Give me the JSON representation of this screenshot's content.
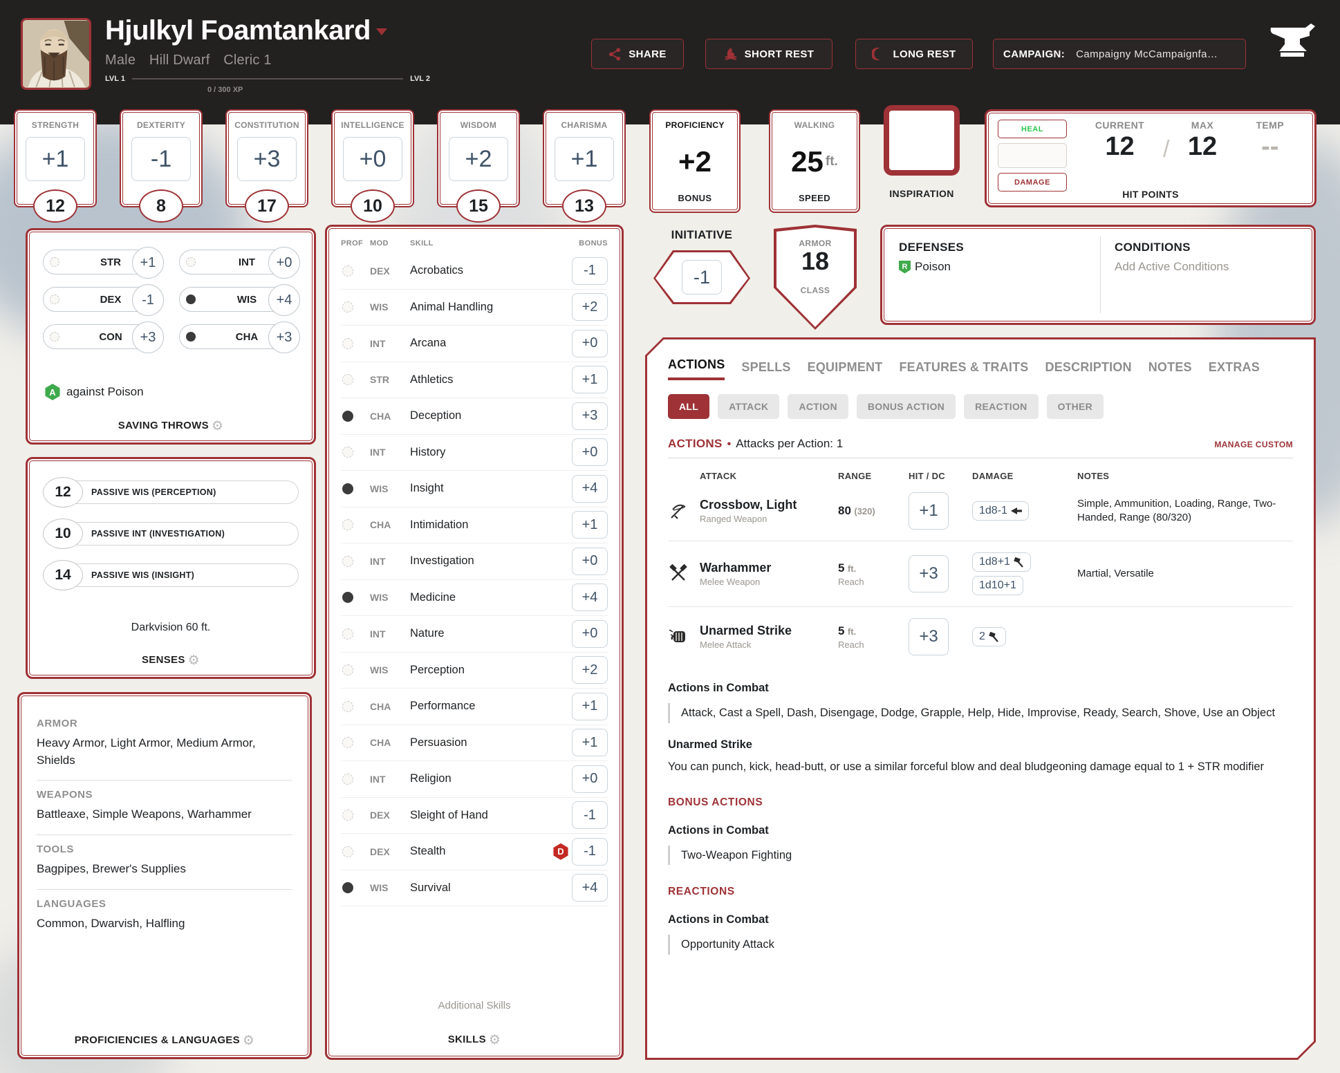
{
  "colors": {
    "accent": "#9e3236",
    "badge_red": "#c22a23",
    "green": "#3faa4c",
    "heal_green": "#2ec84e",
    "slate": "#3f5368",
    "header_bg": "#232020",
    "page_bg": "#f1efe9"
  },
  "header": {
    "name": "Hjulkyl Foamtankard",
    "gender": "Male",
    "race": "Hill Dwarf",
    "class_level": "Cleric 1",
    "lvl_left": "LVL 1",
    "lvl_right": "LVL 2",
    "xp": "0 / 300 XP",
    "share": "SHARE",
    "short_rest": "SHORT REST",
    "long_rest": "LONG REST",
    "campaign_label": "CAMPAIGN:",
    "campaign_value": "Campaigny McCampaignfa…"
  },
  "abilities": [
    {
      "label": "STRENGTH",
      "mod": "+1",
      "score": "12"
    },
    {
      "label": "DEXTERITY",
      "mod": "-1",
      "score": "8"
    },
    {
      "label": "CONSTITUTION",
      "mod": "+3",
      "score": "17"
    },
    {
      "label": "INTELLIGENCE",
      "mod": "+0",
      "score": "10"
    },
    {
      "label": "WISDOM",
      "mod": "+2",
      "score": "15"
    },
    {
      "label": "CHARISMA",
      "mod": "+1",
      "score": "13"
    }
  ],
  "proficiency": {
    "top": "PROFICIENCY",
    "value": "+2",
    "bottom": "BONUS"
  },
  "speed": {
    "top": "WALKING",
    "value": "25",
    "unit": "ft.",
    "bottom": "SPEED"
  },
  "inspiration": {
    "label": "INSPIRATION"
  },
  "hit_points": {
    "heal": "HEAL",
    "damage": "DAMAGE",
    "current_label": "CURRENT",
    "max_label": "MAX",
    "temp_label": "TEMP",
    "current": "12",
    "slash": "/",
    "max": "12",
    "temp": "--",
    "label": "HIT POINTS"
  },
  "initiative": {
    "label": "INITIATIVE",
    "value": "-1"
  },
  "armor_class": {
    "top": "ARMOR",
    "value": "18",
    "bottom": "CLASS"
  },
  "defenses": {
    "title": "DEFENSES",
    "badge": "R",
    "item": "Poison"
  },
  "conditions": {
    "title": "CONDITIONS",
    "placeholder": "Add Active Conditions"
  },
  "saving_throws": {
    "items": [
      {
        "abbr": "STR",
        "mod": "+1",
        "prof": false
      },
      {
        "abbr": "INT",
        "mod": "+0",
        "prof": false
      },
      {
        "abbr": "DEX",
        "mod": "-1",
        "prof": false
      },
      {
        "abbr": "WIS",
        "mod": "+4",
        "prof": true
      },
      {
        "abbr": "CON",
        "mod": "+3",
        "prof": false
      },
      {
        "abbr": "CHA",
        "mod": "+3",
        "prof": true
      }
    ],
    "note_badge": "A",
    "note": "against Poison",
    "footer": "SAVING THROWS"
  },
  "senses": {
    "items": [
      {
        "value": "12",
        "label": "PASSIVE WIS (PERCEPTION)"
      },
      {
        "value": "10",
        "label": "PASSIVE INT (INVESTIGATION)"
      },
      {
        "value": "14",
        "label": "PASSIVE WIS (INSIGHT)"
      }
    ],
    "extra": "Darkvision 60 ft.",
    "footer": "SENSES"
  },
  "proficiencies": {
    "groups": [
      {
        "title": "ARMOR",
        "text": "Heavy Armor, Light Armor, Medium Armor, Shields"
      },
      {
        "title": "WEAPONS",
        "text": "Battleaxe, Simple Weapons, Warhammer"
      },
      {
        "title": "TOOLS",
        "text": "Bagpipes, Brewer's Supplies"
      },
      {
        "title": "LANGUAGES",
        "text": "Common, Dwarvish, Halfling"
      }
    ],
    "footer": "PROFICIENCIES & LANGUAGES"
  },
  "skills": {
    "headers": {
      "prof": "PROF",
      "mod": "MOD",
      "skill": "SKILL",
      "bonus": "BONUS"
    },
    "rows": [
      {
        "prof": false,
        "mod": "DEX",
        "skill": "Acrobatics",
        "bonus": "-1",
        "badge": ""
      },
      {
        "prof": false,
        "mod": "WIS",
        "skill": "Animal Handling",
        "bonus": "+2",
        "badge": ""
      },
      {
        "prof": false,
        "mod": "INT",
        "skill": "Arcana",
        "bonus": "+0",
        "badge": ""
      },
      {
        "prof": false,
        "mod": "STR",
        "skill": "Athletics",
        "bonus": "+1",
        "badge": ""
      },
      {
        "prof": true,
        "mod": "CHA",
        "skill": "Deception",
        "bonus": "+3",
        "badge": ""
      },
      {
        "prof": false,
        "mod": "INT",
        "skill": "History",
        "bonus": "+0",
        "badge": ""
      },
      {
        "prof": true,
        "mod": "WIS",
        "skill": "Insight",
        "bonus": "+4",
        "badge": ""
      },
      {
        "prof": false,
        "mod": "CHA",
        "skill": "Intimidation",
        "bonus": "+1",
        "badge": ""
      },
      {
        "prof": false,
        "mod": "INT",
        "skill": "Investigation",
        "bonus": "+0",
        "badge": ""
      },
      {
        "prof": true,
        "mod": "WIS",
        "skill": "Medicine",
        "bonus": "+4",
        "badge": ""
      },
      {
        "prof": false,
        "mod": "INT",
        "skill": "Nature",
        "bonus": "+0",
        "badge": ""
      },
      {
        "prof": false,
        "mod": "WIS",
        "skill": "Perception",
        "bonus": "+2",
        "badge": ""
      },
      {
        "prof": false,
        "mod": "CHA",
        "skill": "Performance",
        "bonus": "+1",
        "badge": ""
      },
      {
        "prof": false,
        "mod": "CHA",
        "skill": "Persuasion",
        "bonus": "+1",
        "badge": ""
      },
      {
        "prof": false,
        "mod": "INT",
        "skill": "Religion",
        "bonus": "+0",
        "badge": ""
      },
      {
        "prof": false,
        "mod": "DEX",
        "skill": "Sleight of Hand",
        "bonus": "-1",
        "badge": ""
      },
      {
        "prof": false,
        "mod": "DEX",
        "skill": "Stealth",
        "bonus": "-1",
        "badge": "D"
      },
      {
        "prof": true,
        "mod": "WIS",
        "skill": "Survival",
        "bonus": "+4",
        "badge": ""
      }
    ],
    "additional": "Additional Skills",
    "footer": "SKILLS"
  },
  "tabs": [
    {
      "label": "ACTIONS",
      "active": true
    },
    {
      "label": "SPELLS",
      "active": false
    },
    {
      "label": "EQUIPMENT",
      "active": false
    },
    {
      "label": "FEATURES & TRAITS",
      "active": false
    },
    {
      "label": "DESCRIPTION",
      "active": false
    },
    {
      "label": "NOTES",
      "active": false
    },
    {
      "label": "EXTRAS",
      "active": false
    }
  ],
  "filters": [
    {
      "label": "ALL",
      "active": true
    },
    {
      "label": "ATTACK",
      "active": false
    },
    {
      "label": "ACTION",
      "active": false
    },
    {
      "label": "BONUS ACTION",
      "active": false
    },
    {
      "label": "REACTION",
      "active": false
    },
    {
      "label": "OTHER",
      "active": false
    }
  ],
  "actions_panel": {
    "section_title": "ACTIONS",
    "bullet": "•",
    "section_sub": "Attacks per Action: 1",
    "manage": "MANAGE CUSTOM",
    "table_headers": {
      "attack": "ATTACK",
      "range": "RANGE",
      "hit": "HIT / DC",
      "damage": "DAMAGE",
      "notes": "NOTES"
    },
    "attacks": [
      {
        "icon": "crossbow",
        "name": "Crossbow, Light",
        "type": "Ranged Weapon",
        "range_main": "80",
        "range_small": "(320)",
        "range_line2": "",
        "hit": "+1",
        "damage": [
          {
            "text": "1d8-1",
            "icon": "bolt"
          }
        ],
        "notes": "Simple, Ammunition, Loading, Range, Two-Handed, Range (80/320)"
      },
      {
        "icon": "warhammer",
        "name": "Warhammer",
        "type": "Melee Weapon",
        "range_main": "5",
        "range_small": "ft.",
        "range_line2": "Reach",
        "hit": "+3",
        "damage": [
          {
            "text": "1d8+1",
            "icon": "hammer"
          },
          {
            "text": "1d10+1",
            "icon": ""
          }
        ],
        "notes": "Martial, Versatile"
      },
      {
        "icon": "fist",
        "name": "Unarmed Strike",
        "type": "Melee Attack",
        "range_main": "5",
        "range_small": "ft.",
        "range_line2": "Reach",
        "hit": "+3",
        "damage": [
          {
            "text": "2",
            "icon": "hammer"
          }
        ],
        "notes": ""
      }
    ],
    "combat_title": "Actions in Combat",
    "combat_list": "Attack, Cast a Spell, Dash, Disengage, Dodge, Grapple, Help, Hide, Improvise, Ready, Search, Shove, Use an Object",
    "unarmed_title": "Unarmed Strike",
    "unarmed_text": "You can punch, kick, head-butt, or use a similar forceful blow and deal bludgeoning damage equal to 1 + STR modifier",
    "bonus_title": "BONUS ACTIONS",
    "bonus_sub": "Actions in Combat",
    "bonus_item": "Two-Weapon Fighting",
    "react_title": "REACTIONS",
    "react_sub": "Actions in Combat",
    "react_item": "Opportunity Attack"
  }
}
